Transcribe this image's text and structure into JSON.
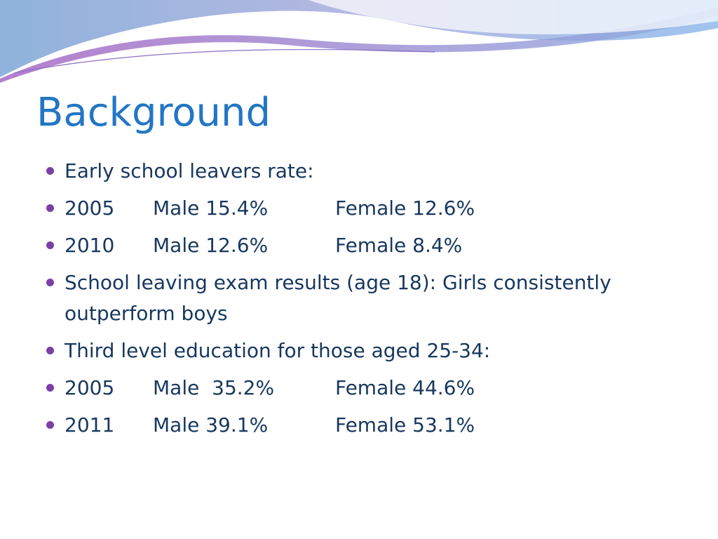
{
  "title": "Background",
  "bullets": [
    [
      "Early school leavers rate:"
    ],
    [
      "2005",
      "Male 15.4%",
      "Female 12.6%"
    ],
    [
      "2010",
      "Male 12.6%",
      "Female 8.4%"
    ],
    [
      "School leaving exam results (age 18): Girls consistently outperform boys"
    ],
    [
      "Third level education for those aged 25-34:"
    ],
    [
      "2005",
      "Male  35.2%",
      "Female 44.6%"
    ],
    [
      "2011",
      "Male 39.1%",
      "Female 53.1%"
    ]
  ]
}
